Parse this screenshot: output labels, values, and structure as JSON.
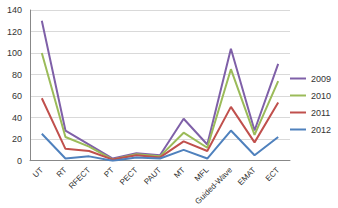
{
  "chart_data": {
    "type": "line",
    "categories": [
      "UT",
      "RT",
      "RFECT",
      "PT",
      "PECT",
      "PAUT",
      "MT",
      "MFL",
      "Guided-Wave",
      "EMAT",
      "ECT"
    ],
    "series": [
      {
        "name": "2009",
        "color": "#7f60a8",
        "values": [
          130,
          28,
          15,
          2,
          7,
          5,
          39,
          15,
          104,
          28,
          90
        ]
      },
      {
        "name": "2010",
        "color": "#9bbb59",
        "values": [
          100,
          22,
          13,
          1,
          6,
          4,
          26,
          12,
          85,
          24,
          74
        ]
      },
      {
        "name": "2011",
        "color": "#c0504d",
        "values": [
          58,
          11,
          9,
          1,
          5,
          3,
          18,
          9,
          50,
          17,
          54
        ]
      },
      {
        "name": "2012",
        "color": "#4f81bd",
        "values": [
          25,
          2,
          4,
          0,
          3,
          2,
          10,
          2,
          28,
          5,
          22
        ]
      }
    ],
    "ylim": [
      0,
      140
    ],
    "yticks": [
      0,
      20,
      40,
      60,
      80,
      100,
      120,
      140
    ],
    "grid": true,
    "legend": "right"
  }
}
